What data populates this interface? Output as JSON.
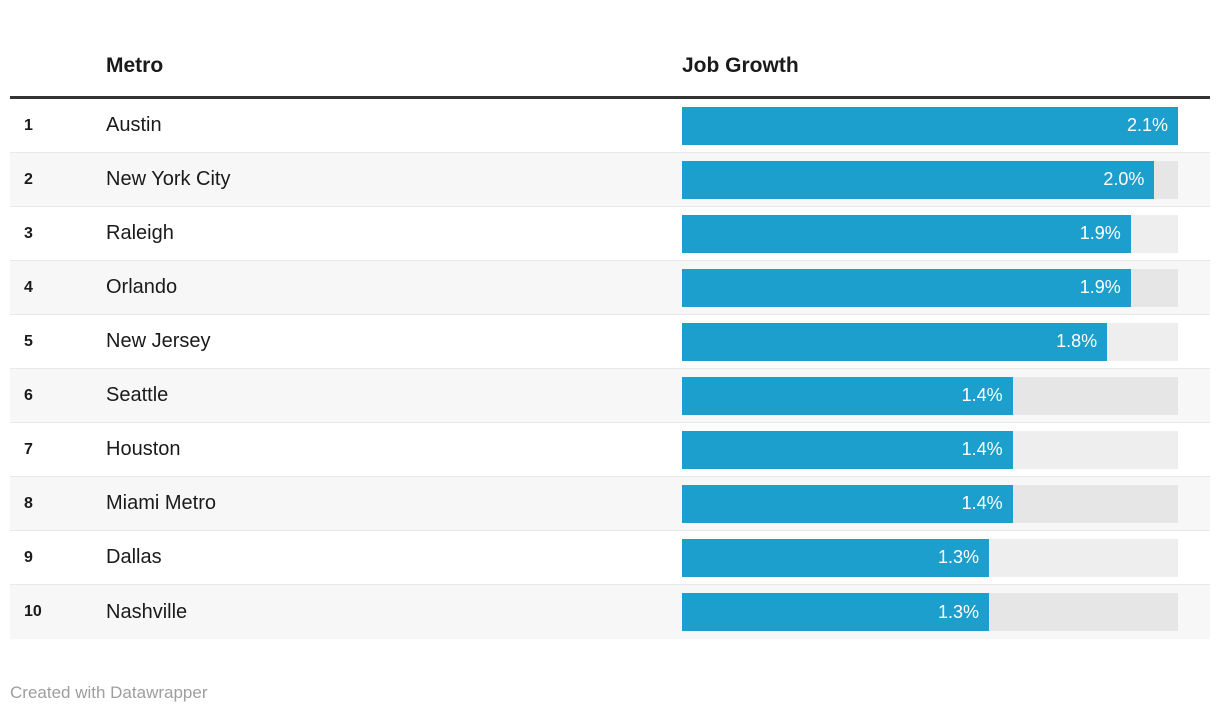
{
  "table": {
    "columns": {
      "rank": "",
      "metro": "Metro",
      "job_growth": "Job Growth"
    }
  },
  "chart_data": {
    "type": "bar",
    "orientation": "horizontal",
    "title": "",
    "xlabel": "Job Growth",
    "ylabel": "Metro",
    "unit": "%",
    "xlim": [
      0,
      2.1
    ],
    "grid": false,
    "legend": false,
    "ranks": [
      1,
      2,
      3,
      4,
      5,
      6,
      7,
      8,
      9,
      10
    ],
    "categories": [
      "Austin",
      "New York City",
      "Raleigh",
      "Orlando",
      "New Jersey",
      "Seattle",
      "Houston",
      "Miami Metro",
      "Dallas",
      "Nashville"
    ],
    "values": [
      2.1,
      2.0,
      1.9,
      1.9,
      1.8,
      1.4,
      1.4,
      1.4,
      1.3,
      1.3
    ],
    "value_labels": [
      "2.1%",
      "2.0%",
      "1.9%",
      "1.9%",
      "1.8%",
      "1.4%",
      "1.4%",
      "1.4%",
      "1.3%",
      "1.3%"
    ]
  },
  "footer": {
    "credit": "Created with Datawrapper"
  },
  "colors": {
    "bar": "#1C9FCC",
    "header_rule": "#333333",
    "row_stripe": "#F7F7F7",
    "row_border": "#E8E8E8",
    "footer_text": "#9E9E9E",
    "text": "#1A1A1A"
  }
}
